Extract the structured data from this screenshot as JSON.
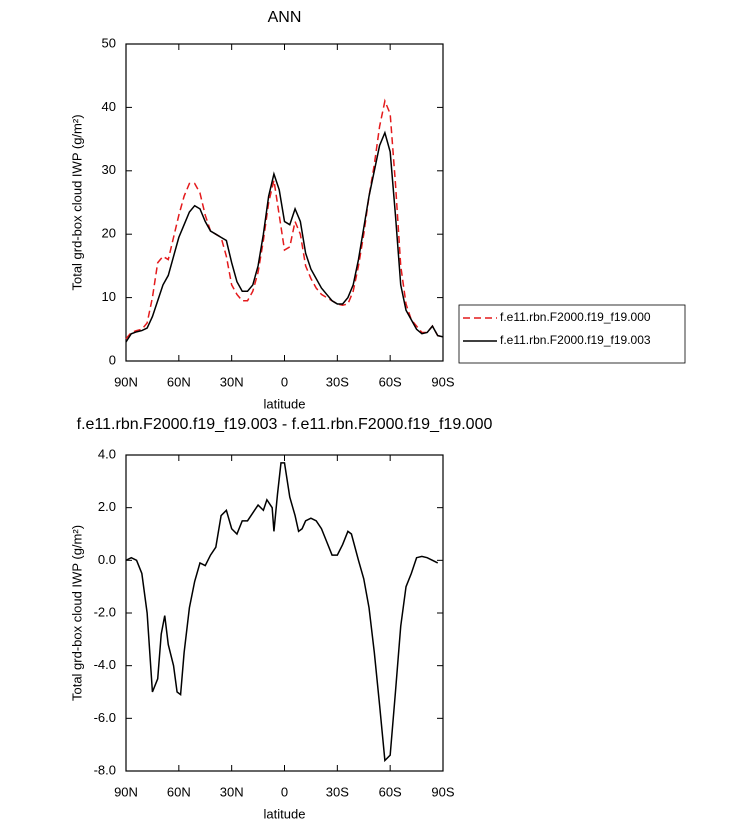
{
  "chart_data": [
    {
      "type": "line",
      "title": "ANN",
      "xlabel": "latitude",
      "ylabel": "Total grd-box cloud IWP (g/m²)",
      "xlim": [
        90,
        -90
      ],
      "xticks": [
        {
          "value": 90,
          "label": "90N"
        },
        {
          "value": 60,
          "label": "60N"
        },
        {
          "value": 30,
          "label": "30N"
        },
        0,
        {
          "value": -30,
          "label": "30S"
        },
        {
          "value": -60,
          "label": "60S"
        },
        {
          "value": -90,
          "label": "90S"
        }
      ],
      "ylim": [
        0,
        50
      ],
      "yticks": [
        0,
        10,
        20,
        30,
        40,
        50
      ],
      "legend": "right",
      "x": [
        90,
        87,
        84,
        81,
        78,
        75,
        72,
        69,
        66,
        63,
        60,
        57,
        54,
        51,
        48,
        45,
        42,
        39,
        36,
        33,
        30,
        27,
        24,
        21,
        18,
        15,
        12,
        9,
        6,
        3,
        0,
        -3,
        -6,
        -9,
        -12,
        -15,
        -18,
        -21,
        -24,
        -27,
        -30,
        -33,
        -36,
        -39,
        -42,
        -45,
        -48,
        -51,
        -54,
        -57,
        -60,
        -63,
        -66,
        -69,
        -72,
        -75,
        -78,
        -81,
        -84,
        -87,
        -90
      ],
      "series": [
        {
          "name": "f.e11.rbn.F2000.f19_f19.000",
          "color": "#e41a1c",
          "line_style": "dashed",
          "values": [
            3.5,
            4.5,
            4.8,
            5,
            6,
            10,
            15.5,
            16.5,
            16,
            19.5,
            23,
            26,
            28,
            28,
            26.5,
            23,
            20.5,
            20,
            19.5,
            16.5,
            12,
            10.5,
            9.5,
            9.5,
            11,
            14,
            19,
            25,
            28.5,
            23,
            17.5,
            18,
            22,
            20,
            15,
            13,
            11.5,
            10.5,
            10,
            9.5,
            9,
            8.8,
            9,
            11,
            15,
            20,
            26,
            31,
            37,
            41,
            39,
            28,
            15,
            9,
            6.5,
            5.5,
            4.5,
            4.5,
            5.5,
            4,
            3.8
          ]
        },
        {
          "name": "f.e11.rbn.F2000.f19_f19.003",
          "color": "#000000",
          "line_style": "solid",
          "values": [
            3,
            4.3,
            4.6,
            4.8,
            5.2,
            7,
            9.5,
            12,
            13.5,
            16.5,
            19.5,
            21.5,
            23.5,
            24.5,
            24,
            22,
            20.5,
            20,
            19.5,
            19,
            15.5,
            12.5,
            11,
            11,
            12,
            15,
            20,
            26,
            29.5,
            27,
            22,
            21.5,
            24,
            22,
            17,
            14.5,
            13,
            11.5,
            10.5,
            9.5,
            9,
            9,
            10,
            12,
            16,
            21,
            26,
            30,
            34,
            36,
            33,
            23,
            12,
            8,
            6.5,
            5,
            4.3,
            4.5,
            5.5,
            4,
            3.8
          ]
        }
      ]
    },
    {
      "type": "line",
      "title": "f.e11.rbn.F2000.f19_f19.003 - f.e11.rbn.F2000.f19_f19.000",
      "xlabel": "latitude",
      "ylabel": "Total grd-box cloud IWP (g/m²)",
      "xlim": [
        90,
        -90
      ],
      "xticks": [
        {
          "value": 90,
          "label": "90N"
        },
        {
          "value": 60,
          "label": "60N"
        },
        {
          "value": 30,
          "label": "30N"
        },
        0,
        {
          "value": -30,
          "label": "30S"
        },
        {
          "value": -60,
          "label": "60S"
        },
        {
          "value": -90,
          "label": "90S"
        }
      ],
      "ylim": [
        -8,
        4
      ],
      "yticks": [
        {
          "value": -8,
          "label": "-8.0"
        },
        {
          "value": -6,
          "label": "-6.0"
        },
        {
          "value": -4,
          "label": "-4.0"
        },
        {
          "value": -2,
          "label": "-2.0"
        },
        {
          "value": 0,
          "label": "0.0"
        },
        {
          "value": 2,
          "label": "2.0"
        },
        {
          "value": 4,
          "label": "4.0"
        }
      ],
      "x": [
        90,
        87,
        84,
        81,
        78,
        75,
        72,
        70,
        68,
        66,
        63,
        61,
        59,
        57,
        54,
        51,
        48,
        45,
        42,
        39,
        36,
        33,
        30,
        27,
        24,
        21,
        18,
        15,
        12,
        10,
        7,
        6,
        4,
        2,
        0,
        -3,
        -6,
        -8,
        -10,
        -12,
        -15,
        -18,
        -21,
        -24,
        -27,
        -30,
        -33,
        -36,
        -38,
        -42,
        -45,
        -48,
        -51,
        -54,
        -57,
        -60,
        -63,
        -66,
        -69,
        -72,
        -75,
        -78,
        -81,
        -84,
        -87
      ],
      "series": [
        {
          "color": "#000000",
          "line_style": "solid",
          "values": [
            0,
            0.1,
            0,
            -0.5,
            -2,
            -5,
            -4.5,
            -2.8,
            -2.1,
            -3.2,
            -4,
            -5,
            -5.1,
            -3.5,
            -1.8,
            -0.8,
            -0.1,
            -0.2,
            0.2,
            0.5,
            1.7,
            1.9,
            1.2,
            1,
            1.5,
            1.5,
            1.8,
            2.1,
            1.9,
            2.3,
            2,
            1.1,
            2.5,
            3.7,
            3.7,
            2.4,
            1.7,
            1.1,
            1.2,
            1.5,
            1.6,
            1.5,
            1.2,
            0.7,
            0.2,
            0.2,
            0.6,
            1.1,
            1,
            0,
            -0.7,
            -1.8,
            -3.5,
            -5.5,
            -7.6,
            -7.4,
            -5,
            -2.5,
            -1,
            -0.5,
            0.1,
            0.15,
            0.1,
            0,
            -0.1
          ]
        }
      ]
    }
  ]
}
